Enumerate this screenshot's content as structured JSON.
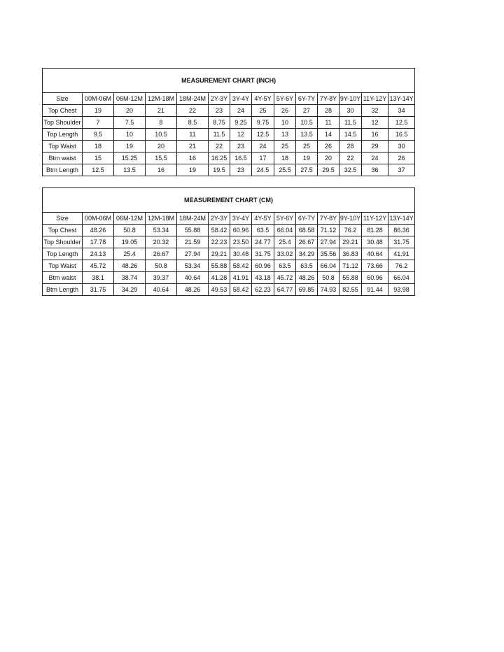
{
  "sizes": [
    "Size",
    "00M-06M",
    "06M-12M",
    "12M-18M",
    "18M-24M",
    "2Y-3Y",
    "3Y-4Y",
    "4Y-5Y",
    "5Y-6Y",
    "6Y-7Y",
    "7Y-8Y",
    "9Y-10Y",
    "11Y-12Y",
    "13Y-14Y"
  ],
  "inch": {
    "title": "MEASUREMENT CHART (INCH)",
    "rows": [
      [
        "Top  Chest",
        "19",
        "20",
        "21",
        "22",
        "23",
        "24",
        "25",
        "26",
        "27",
        "28",
        "30",
        "32",
        "34"
      ],
      [
        "Top Shoulder",
        "7",
        "7.5",
        "8",
        "8.5",
        "8.75",
        "9.25",
        "9.75",
        "10",
        "10.5",
        "11",
        "11.5",
        "12",
        "12.5"
      ],
      [
        "Top Length",
        "9.5",
        "10",
        "10.5",
        "11",
        "11.5",
        "12",
        "12.5",
        "13",
        "13.5",
        "14",
        "14.5",
        "16",
        "16.5"
      ],
      [
        "Top Waist",
        "18",
        "19",
        "20",
        "21",
        "22",
        "23",
        "24",
        "25",
        "25",
        "26",
        "28",
        "29",
        "30"
      ],
      [
        "Btm waist",
        "15",
        "15.25",
        "15.5",
        "16",
        "16.25",
        "16.5",
        "17",
        "18",
        "19",
        "20",
        "22",
        "24",
        "26"
      ],
      [
        "Btm Length",
        "12.5",
        "13.5",
        "16",
        "19",
        "19.5",
        "23",
        "24.5",
        "25.5",
        "27.5",
        "29.5",
        "32.5",
        "36",
        "37"
      ]
    ]
  },
  "cm": {
    "title": "MEASUREMENT CHART (CM)",
    "rows": [
      [
        "Top  Chest",
        "48.26",
        "50.8",
        "53.34",
        "55.88",
        "58.42",
        "60.96",
        "63.5",
        "66.04",
        "68.58",
        "71.12",
        "76.2",
        "81.28",
        "86.36"
      ],
      [
        "Top Shoulder",
        "17.78",
        "19.05",
        "20.32",
        "21.59",
        "22.23",
        "23.50",
        "24.77",
        "25.4",
        "26.67",
        "27.94",
        "29.21",
        "30.48",
        "31.75"
      ],
      [
        "Top Length",
        "24.13",
        "25.4",
        "26.67",
        "27.94",
        "29.21",
        "30.48",
        "31.75",
        "33.02",
        "34.29",
        "35.56",
        "36.83",
        "40.64",
        "41.91"
      ],
      [
        "Top Waist",
        "45.72",
        "48.26",
        "50.8",
        "53.34",
        "55.88",
        "58.42",
        "60.96",
        "63.5",
        "63.5",
        "66.04",
        "71.12",
        "73.66",
        "76.2"
      ],
      [
        "Btm waist",
        "38.1",
        "38.74",
        "39.37",
        "40.64",
        "41.28",
        "41.91",
        "43.18",
        "45.72",
        "48.26",
        "50.8",
        "55.88",
        "60.96",
        "66.04"
      ],
      [
        "Btm Length",
        "31.75",
        "34.29",
        "40.64",
        "48.26",
        "49.53",
        "58.42",
        "62.23",
        "64.77",
        "69.85",
        "74.93",
        "82.55",
        "91.44",
        "93.98"
      ]
    ]
  }
}
